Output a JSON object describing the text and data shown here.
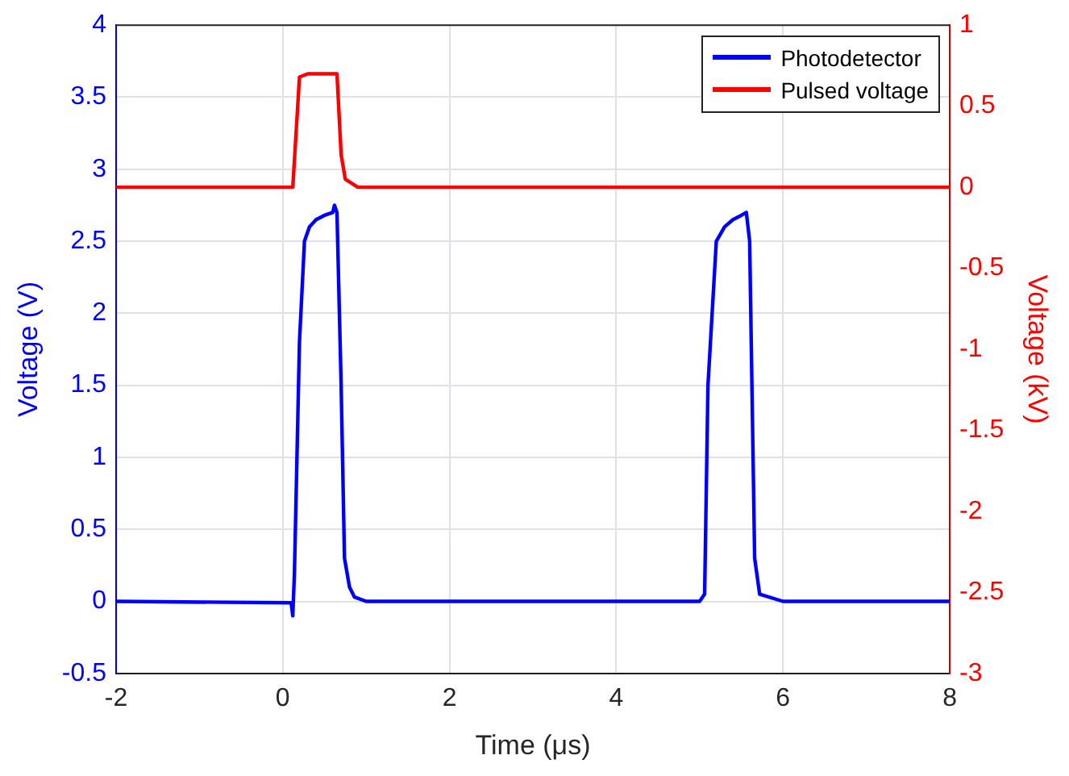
{
  "chart_data": {
    "type": "line",
    "xlabel": "Time (μs)",
    "ylabel": "Voltage (V)",
    "y2label": "Voltage (kV)",
    "xlim": [
      -2,
      8
    ],
    "xticks": [
      -2,
      0,
      2,
      4,
      6,
      8
    ],
    "ylim": [
      -0.5,
      4
    ],
    "yticks": [
      -0.5,
      0,
      0.5,
      1,
      1.5,
      2,
      2.5,
      3,
      3.5,
      4
    ],
    "y2lim": [
      -3,
      1
    ],
    "y2ticks": [
      -3,
      -2.5,
      -2,
      -1.5,
      -1,
      -0.5,
      0,
      0.5,
      1
    ],
    "grid": true,
    "legend": "top right",
    "line_style": "solid",
    "marker": "none",
    "series": [
      {
        "name": "Photodetector",
        "color": "#0000ff",
        "axis": "y",
        "x": [
          -2,
          0.1,
          0.12,
          0.14,
          0.2,
          0.26,
          0.32,
          0.4,
          0.5,
          0.6,
          0.62,
          0.65,
          0.7,
          0.74,
          0.8,
          0.86,
          1,
          2,
          3,
          4,
          5,
          5.06,
          5.1,
          5.2,
          5.3,
          5.4,
          5.5,
          5.56,
          5.6,
          5.66,
          5.72,
          6,
          7,
          8
        ],
        "values": [
          0,
          -0.01,
          -0.1,
          0.2,
          1.8,
          2.5,
          2.6,
          2.65,
          2.68,
          2.7,
          2.75,
          2.7,
          1.5,
          0.3,
          0.1,
          0.03,
          0,
          0,
          0,
          0,
          0,
          0.05,
          1.5,
          2.5,
          2.6,
          2.65,
          2.68,
          2.7,
          2.5,
          0.3,
          0.05,
          0,
          0,
          0
        ]
      },
      {
        "name": "Pulsed voltage",
        "color": "#ff0000",
        "axis": "y2",
        "x": [
          -2,
          0.12,
          0.2,
          0.3,
          0.5,
          0.65,
          0.7,
          0.75,
          0.9,
          2,
          8
        ],
        "values": [
          0,
          0,
          0.68,
          0.7,
          0.7,
          0.7,
          0.2,
          0.05,
          0,
          0,
          0
        ]
      }
    ]
  }
}
